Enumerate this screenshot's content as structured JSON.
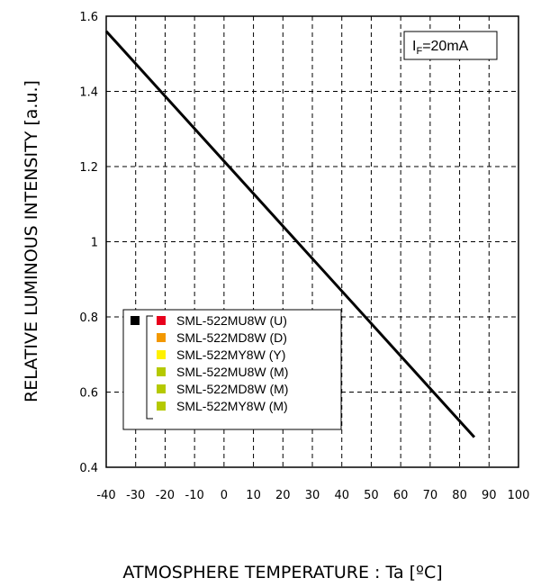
{
  "chart_data": {
    "type": "line",
    "xlabel": "ATMOSPHERE TEMPERATURE : Ta [ºC]",
    "ylabel": "RELATIVE LUMINOUS INTENSITY [a.u.]",
    "xlim": [
      -40,
      100
    ],
    "ylim": [
      0.4,
      1.6
    ],
    "xticks": [
      -40,
      -30,
      -20,
      -10,
      0,
      10,
      20,
      30,
      40,
      50,
      60,
      70,
      80,
      90,
      100
    ],
    "yticks": [
      0.4,
      0.6,
      0.8,
      1.0,
      1.2,
      1.4,
      1.6
    ],
    "ytick_labels": [
      "0.4",
      "0.6",
      "0.8",
      "1",
      "1.2",
      "1.4",
      "1.6"
    ],
    "grid": true,
    "series": [
      {
        "x": [
          -40,
          85
        ],
        "y": [
          1.56,
          0.48
        ],
        "color": "#000000"
      }
    ],
    "condition_prefix": "I",
    "condition_sub": "F",
    "condition_suffix": "=20mA",
    "legend": {
      "placement": "lower-left",
      "items": [
        {
          "label": "SML-522MU8W (U)",
          "color": "#e8001c"
        },
        {
          "label": "SML-522MD8W (D)",
          "color": "#f39800"
        },
        {
          "label": "SML-522MY8W (Y)",
          "color": "#fff100"
        },
        {
          "label": "SML-522MU8W (M)",
          "color": "#b5c900"
        },
        {
          "label": "SML-522MD8W (M)",
          "color": "#b5c900"
        },
        {
          "label": "SML-522MY8W (M)",
          "color": "#b5c900"
        }
      ],
      "group_marker_color": "#000000"
    }
  }
}
